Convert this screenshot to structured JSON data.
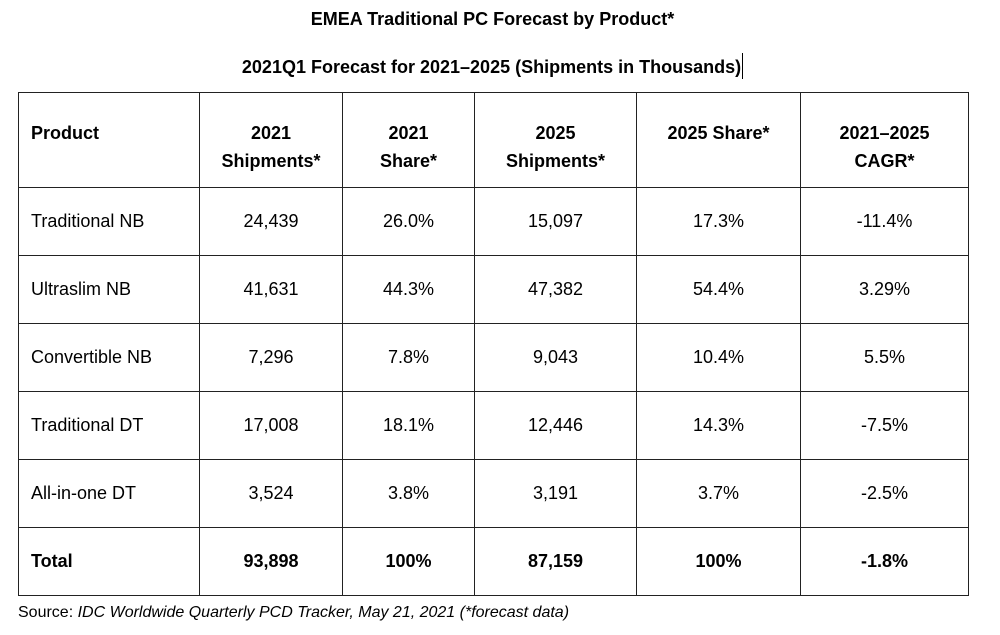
{
  "title": "EMEA Traditional PC Forecast by Product*",
  "subtitle": "2021Q1 Forecast for 2021–2025 (Shipments in Thousands)",
  "table": {
    "headers": [
      {
        "line1": "Product",
        "line2": ""
      },
      {
        "line1": "2021",
        "line2": "Shipments*"
      },
      {
        "line1": "2021",
        "line2": "Share*"
      },
      {
        "line1": "2025",
        "line2": "Shipments*"
      },
      {
        "line1": "2025 Share*",
        "line2": ""
      },
      {
        "line1": "2021–2025",
        "line2": "CAGR*"
      }
    ],
    "rows": [
      {
        "product": "Traditional NB",
        "ship2021": "24,439",
        "share2021": "26.0%",
        "ship2025": "15,097",
        "share2025": "17.3%",
        "cagr": "-11.4%"
      },
      {
        "product": "Ultraslim NB",
        "ship2021": "41,631",
        "share2021": "44.3%",
        "ship2025": "47,382",
        "share2025": "54.4%",
        "cagr": "3.29%"
      },
      {
        "product": "Convertible NB",
        "ship2021": "7,296",
        "share2021": "7.8%",
        "ship2025": "9,043",
        "share2025": "10.4%",
        "cagr": "5.5%"
      },
      {
        "product": "Traditional DT",
        "ship2021": "17,008",
        "share2021": "18.1%",
        "ship2025": "12,446",
        "share2025": "14.3%",
        "cagr": "-7.5%"
      },
      {
        "product": "All-in-one DT",
        "ship2021": "3,524",
        "share2021": "3.8%",
        "ship2025": "3,191",
        "share2025": "3.7%",
        "cagr": "-2.5%"
      }
    ],
    "total": {
      "product": "Total",
      "ship2021": "93,898",
      "share2021": "100%",
      "ship2025": "87,159",
      "share2025": "100%",
      "cagr": "-1.8%"
    }
  },
  "source": {
    "label": "Source: ",
    "text": "IDC Worldwide Quarterly PCD Tracker, May 21, 2021 (*forecast data)"
  }
}
